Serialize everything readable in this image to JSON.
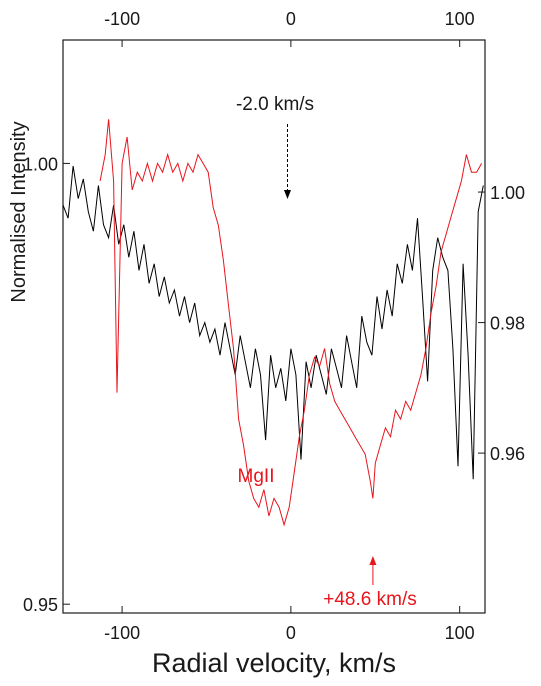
{
  "chart_data": {
    "type": "line",
    "xlabel": "Radial velocity, km/s",
    "ylabel": "Normalised Intensity",
    "x_range": [
      -135,
      115
    ],
    "grid": false,
    "colors": {
      "frame": "#1a1a1a",
      "series_top": "#000000",
      "series_bottom": "#e8141c"
    },
    "bottom_axis": {
      "ticks": [
        -100,
        0,
        100
      ],
      "tick_labels": [
        "-100",
        "0",
        "100"
      ]
    },
    "top_axis": {
      "ticks": [
        -100,
        0,
        100
      ],
      "tick_labels": [
        "-100",
        "0",
        "100"
      ]
    },
    "left_axis": {
      "ylim": [
        0.949,
        1.014
      ],
      "ticks": [
        0.95,
        1.0
      ],
      "tick_labels": [
        "0.95",
        "1.00"
      ]
    },
    "right_axis": {
      "ylim": [
        0.9355,
        1.0233
      ],
      "ticks": [
        0.96,
        0.98,
        1.0
      ],
      "tick_labels": [
        "0.96",
        "0.98",
        "1.00"
      ]
    },
    "series": [
      {
        "axis": "right",
        "x": [
          -135,
          -132,
          -129,
          -126,
          -123,
          -120,
          -117,
          -114,
          -111,
          -108,
          -105,
          -102,
          -99,
          -96,
          -93,
          -90,
          -87,
          -84,
          -81,
          -78,
          -75,
          -72,
          -69,
          -66,
          -63,
          -60,
          -57,
          -54,
          -51,
          -48,
          -45,
          -42,
          -39,
          -36,
          -33,
          -30,
          -27,
          -24,
          -21,
          -18,
          -15,
          -12,
          -9,
          -6,
          -3,
          0,
          3,
          6,
          9,
          12,
          15,
          18,
          21,
          24,
          27,
          30,
          33,
          36,
          39,
          42,
          45,
          48,
          51,
          54,
          57,
          60,
          63,
          66,
          69,
          72,
          75,
          78,
          81,
          84,
          87,
          90,
          93,
          96,
          99,
          102,
          105,
          108,
          111,
          114
        ],
        "y": [
          0.998,
          0.996,
          1.004,
          0.999,
          1.002,
          0.997,
          0.994,
          1.001,
          0.995,
          0.993,
          0.998,
          0.992,
          0.995,
          0.99,
          0.994,
          0.988,
          0.992,
          0.986,
          0.989,
          0.984,
          0.987,
          0.983,
          0.985,
          0.981,
          0.984,
          0.98,
          0.983,
          0.978,
          0.98,
          0.977,
          0.979,
          0.975,
          0.98,
          0.976,
          0.972,
          0.978,
          0.974,
          0.97,
          0.976,
          0.972,
          0.962,
          0.975,
          0.97,
          0.973,
          0.968,
          0.976,
          0.972,
          0.959,
          0.974,
          0.97,
          0.975,
          0.972,
          0.969,
          0.976,
          0.973,
          0.97,
          0.978,
          0.974,
          0.97,
          0.981,
          0.977,
          0.975,
          0.984,
          0.979,
          0.985,
          0.981,
          0.989,
          0.986,
          0.992,
          0.988,
          0.996,
          0.984,
          0.971,
          0.988,
          0.993,
          0.99,
          0.988,
          0.976,
          0.958,
          0.989,
          0.975,
          0.956,
          0.997,
          1.001
        ]
      },
      {
        "axis": "left",
        "x": [
          -113,
          -110,
          -108,
          -105,
          -103,
          -100,
          -97,
          -94,
          -91,
          -88,
          -85,
          -82,
          -79,
          -76,
          -73,
          -70,
          -67,
          -64,
          -61,
          -58,
          -55,
          -52,
          -49,
          -46,
          -43,
          -40,
          -37,
          -34,
          -31,
          -28,
          -25,
          -22,
          -19,
          -16,
          -13,
          -10,
          -7,
          -4,
          -1,
          2,
          5,
          8,
          11,
          14,
          17,
          20,
          23,
          26,
          29,
          32,
          35,
          38,
          41,
          44,
          47,
          48.6,
          50,
          53,
          56,
          59,
          62,
          65,
          68,
          71,
          74,
          77,
          80,
          83,
          86,
          89,
          92,
          95,
          98,
          101,
          104,
          107,
          110,
          113
        ],
        "y": [
          0.998,
          1.001,
          1.005,
          0.998,
          0.974,
          1.0,
          1.003,
          0.997,
          0.999,
          0.998,
          1.0,
          0.998,
          1.0,
          0.999,
          1.001,
          0.999,
          1.0,
          0.998,
          1.0,
          0.999,
          1.001,
          1.0,
          0.999,
          0.995,
          0.993,
          0.989,
          0.984,
          0.979,
          0.971,
          0.968,
          0.964,
          0.962,
          0.961,
          0.963,
          0.96,
          0.962,
          0.961,
          0.959,
          0.961,
          0.965,
          0.969,
          0.972,
          0.976,
          0.978,
          0.977,
          0.979,
          0.975,
          0.973,
          0.972,
          0.971,
          0.97,
          0.969,
          0.968,
          0.967,
          0.964,
          0.962,
          0.966,
          0.968,
          0.97,
          0.969,
          0.972,
          0.971,
          0.973,
          0.972,
          0.974,
          0.976,
          0.979,
          0.983,
          0.986,
          0.99,
          0.992,
          0.994,
          0.996,
          0.998,
          1.001,
          0.999,
          0.999,
          1.0
        ]
      }
    ],
    "annotations": [
      {
        "text": "-2.0 km/s",
        "x": -2.0,
        "series": 0,
        "arrow": "down",
        "color": "#000000"
      },
      {
        "text": "MgII",
        "color": "#e8141c"
      },
      {
        "text": "+48.6 km/s",
        "x": 48.6,
        "series": 1,
        "arrow": "up",
        "color": "#e8141c"
      }
    ]
  }
}
